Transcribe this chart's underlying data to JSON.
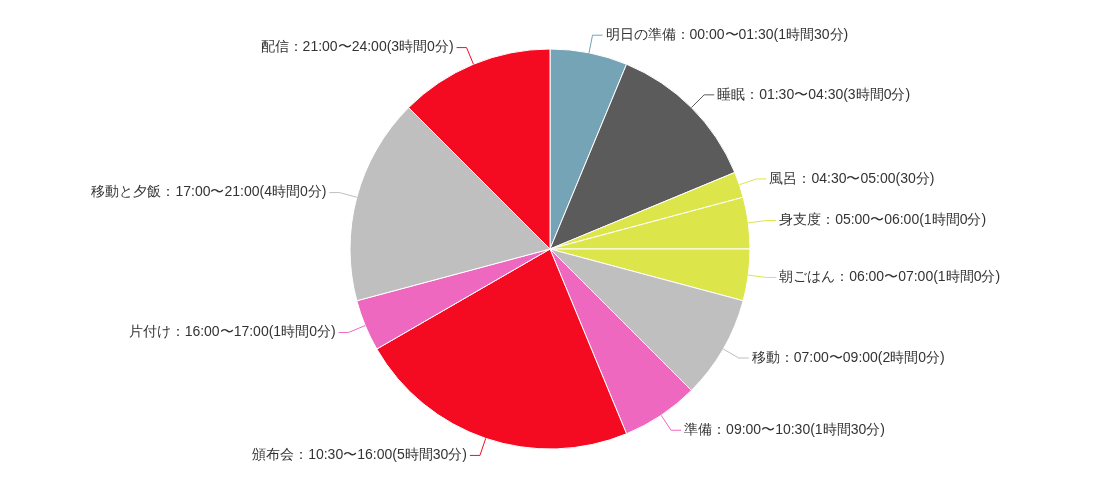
{
  "chart_data": {
    "type": "pie",
    "categories": [
      "明日の準備：00:00〜01:30(1時間30分)",
      "睡眠：01:30〜04:30(3時間0分)",
      "風呂：04:30〜05:00(30分)",
      "身支度：05:00〜06:00(1時間0分)",
      "朝ごはん：06:00〜07:00(1時間0分)",
      "移動：07:00〜09:00(2時間0分)",
      "準備：09:00〜10:30(1時間30分)",
      "頒布会：10:30〜16:00(5時間30分)",
      "片付け：16:00〜17:00(1時間0分)",
      "移動と夕飯：17:00〜21:00(4時間0分)",
      "配信：21:00〜24:00(3時間0分)"
    ],
    "values": [
      1.5,
      3,
      0.5,
      1,
      1,
      2,
      1.5,
      5.5,
      1,
      4,
      3
    ],
    "colors": [
      "#74a4b6",
      "#5b5b5b",
      "#dce64a",
      "#dce64a",
      "#dce64a",
      "#bfbfbf",
      "#ef68bf",
      "#f40b22",
      "#ef68bf",
      "#bfbfbf",
      "#f40b22"
    ]
  }
}
